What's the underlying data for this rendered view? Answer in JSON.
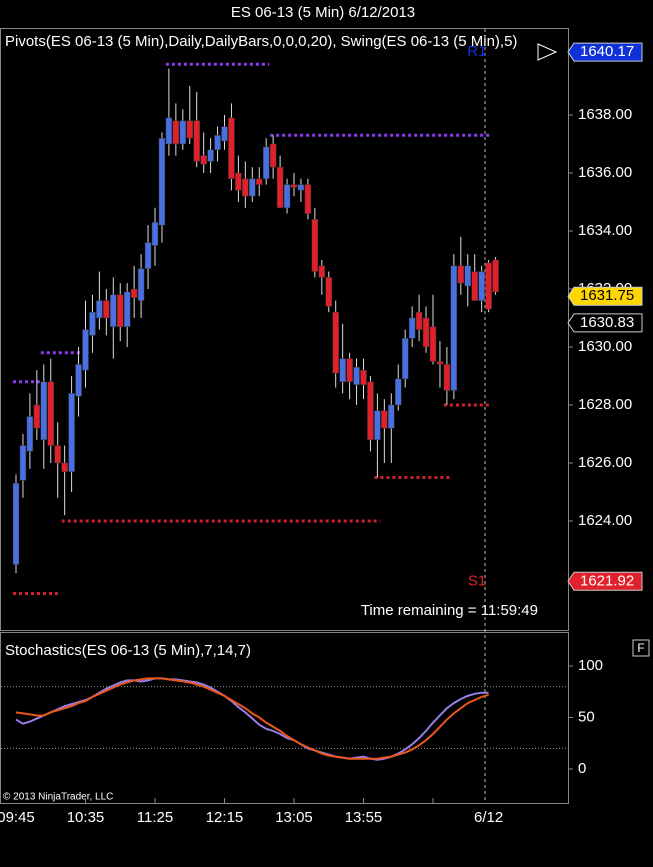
{
  "chart_data": {
    "type": "candlestick",
    "title": "ES 06-13 (5 Min)  6/12/2013",
    "indicator_label": "Pivots(ES 06-13 (5 Min),Daily,DailyBars,0,0,0,20), Swing(ES 06-13 (5 Min),5)",
    "time_remaining": "Time remaining = 11:59:49",
    "copyright": "© 2013 NinjaTrader, LLC",
    "categories": [
      "09:45",
      null,
      null,
      null,
      null,
      null,
      null,
      null,
      null,
      null,
      "10:35",
      null,
      null,
      null,
      null,
      null,
      null,
      null,
      null,
      null,
      "11:25",
      null,
      null,
      null,
      null,
      null,
      null,
      null,
      null,
      null,
      "12:15",
      null,
      null,
      null,
      null,
      null,
      null,
      null,
      null,
      null,
      "13:05",
      null,
      null,
      null,
      null,
      null,
      null,
      null,
      null,
      null,
      "13:55",
      null,
      null,
      null,
      null,
      null,
      null,
      null,
      null,
      null,
      null,
      null,
      null,
      null,
      null,
      null,
      null,
      null,
      "6/12",
      null
    ],
    "open": [
      1622.5,
      1625.4,
      1626.4,
      1628.0,
      1626.8,
      1628.8,
      1626.6,
      1626.0,
      1625.7,
      1628.3,
      1629.2,
      1630.4,
      1631.0,
      1631.6,
      1630.7,
      1631.8,
      1630.7,
      1632.0,
      1631.6,
      1632.7,
      1633.5,
      1634.2,
      1637.0,
      1637.8,
      1637.0,
      1637.8,
      1637.8,
      1636.6,
      1636.4,
      1636.8,
      1637.1,
      1637.9,
      1636.0,
      1635.8,
      1635.2,
      1635.8,
      1635.8,
      1637.0,
      1636.2,
      1634.8,
      1635.6,
      1635.4,
      1635.6,
      1634.4,
      1632.8,
      1632.4,
      1631.2,
      1628.8,
      1629.6,
      1628.7,
      1629.2,
      1628.8,
      1626.8,
      1627.8,
      1627.2,
      1628.0,
      1628.9,
      1630.3,
      1631.2,
      1631.0,
      1630.7,
      1629.5,
      1629.4,
      1628.5,
      1632.8,
      1632.1,
      1632.6,
      1631.6,
      1632.9,
      1633.0
    ],
    "high": [
      1625.6,
      1627.0,
      1628.4,
      1629.2,
      1629.4,
      1629.6,
      1627.4,
      1626.6,
      1629.0,
      1630.0,
      1631.6,
      1631.8,
      1632.6,
      1632.0,
      1632.4,
      1632.2,
      1632.2,
      1632.8,
      1633.2,
      1634.2,
      1634.8,
      1637.4,
      1639.6,
      1638.4,
      1638.2,
      1639.0,
      1638.8,
      1637.4,
      1637.2,
      1637.6,
      1638.0,
      1638.4,
      1636.6,
      1636.4,
      1636.2,
      1636.2,
      1637.2,
      1637.3,
      1636.6,
      1635.8,
      1636.0,
      1635.8,
      1635.8,
      1634.8,
      1633.0,
      1632.6,
      1631.6,
      1630.8,
      1629.8,
      1629.6,
      1629.6,
      1629.0,
      1628.4,
      1628.2,
      1628.4,
      1629.4,
      1630.6,
      1631.4,
      1631.8,
      1631.4,
      1631.8,
      1630.2,
      1630.0,
      1633.2,
      1633.8,
      1633.2,
      1633.2,
      1632.8,
      1633.0,
      1633.1
    ],
    "low": [
      1622.2,
      1624.8,
      1625.8,
      1626.8,
      1625.8,
      1626.0,
      1624.8,
      1624.2,
      1625.0,
      1627.6,
      1628.6,
      1629.8,
      1630.6,
      1630.4,
      1629.6,
      1630.2,
      1630.0,
      1631.0,
      1631.0,
      1632.0,
      1632.8,
      1633.6,
      1636.6,
      1636.6,
      1636.8,
      1637.0,
      1636.2,
      1636.0,
      1636.0,
      1636.4,
      1636.8,
      1635.4,
      1635.0,
      1634.8,
      1635.0,
      1635.2,
      1635.6,
      1635.8,
      1634.8,
      1634.6,
      1635.2,
      1635.0,
      1634.4,
      1632.4,
      1631.8,
      1631.2,
      1628.6,
      1628.4,
      1628.2,
      1628.0,
      1628.2,
      1626.4,
      1625.5,
      1626.0,
      1626.0,
      1627.8,
      1628.6,
      1630.0,
      1630.2,
      1629.8,
      1629.4,
      1628.6,
      1628.0,
      1628.2,
      1631.8,
      1631.4,
      1631.6,
      1631.2,
      1631.2,
      1631.8
    ],
    "close": [
      1625.3,
      1626.6,
      1627.6,
      1627.2,
      1628.8,
      1626.6,
      1626.0,
      1625.7,
      1628.4,
      1629.4,
      1630.6,
      1631.2,
      1631.6,
      1631.0,
      1631.8,
      1630.7,
      1631.9,
      1631.7,
      1632.7,
      1633.6,
      1634.3,
      1637.2,
      1637.9,
      1637.0,
      1637.8,
      1637.2,
      1636.4,
      1636.3,
      1636.8,
      1637.3,
      1637.6,
      1635.8,
      1635.4,
      1635.2,
      1635.8,
      1635.6,
      1636.9,
      1636.2,
      1634.8,
      1635.6,
      1635.5,
      1635.6,
      1634.6,
      1632.6,
      1632.4,
      1631.4,
      1629.1,
      1629.6,
      1628.8,
      1629.3,
      1628.7,
      1626.8,
      1627.8,
      1627.2,
      1628.0,
      1628.9,
      1630.3,
      1631.0,
      1630.6,
      1630.0,
      1629.5,
      1629.4,
      1628.5,
      1632.8,
      1632.2,
      1632.8,
      1631.6,
      1632.6,
      1631.3,
      1631.9
    ],
    "up_color": "#4a6fe0",
    "down_color": "#e0202a",
    "ylim": [
      1620.24,
      1641.0
    ],
    "yticks": [
      {
        "value": 1624,
        "label": "1624.00"
      },
      {
        "value": 1626,
        "label": "1626.00"
      },
      {
        "value": 1628,
        "label": "1628.00"
      },
      {
        "value": 1630,
        "label": "1630.00"
      },
      {
        "value": 1632,
        "label": "1632.00"
      },
      {
        "value": 1634,
        "label": "1634.00"
      },
      {
        "value": 1636,
        "label": "1636.00"
      },
      {
        "value": 1638,
        "label": "1638.00"
      }
    ],
    "pivots": [
      {
        "name": "R1",
        "value": 1640.17,
        "color": "#1030d8"
      },
      {
        "name": "S1",
        "value": 1621.92,
        "color": "#e0202a"
      }
    ],
    "price_markers": [
      {
        "value": 1631.75,
        "color": "#ffd700"
      },
      {
        "value": 1630.83,
        "color": "#000000"
      }
    ],
    "swing_levels": [
      {
        "value": 1639.75,
        "from": 22,
        "to": 36,
        "color": "#8a3cf0"
      },
      {
        "value": 1637.3,
        "from": 37,
        "to": 68,
        "color": "#8a3cf0"
      },
      {
        "value": 1629.8,
        "from": 4,
        "to": 9,
        "color": "#8a3cf0"
      },
      {
        "value": 1628.8,
        "from": 0,
        "to": 3,
        "color": "#8a3cf0"
      },
      {
        "value": 1621.5,
        "from": 0,
        "to": 6,
        "color": "#d02030"
      },
      {
        "value": 1624.0,
        "from": 7,
        "to": 52,
        "color": "#d02030"
      },
      {
        "value": 1625.5,
        "from": 52,
        "to": 62,
        "color": "#d02030"
      },
      {
        "value": 1628.0,
        "from": 62,
        "to": 68,
        "color": "#d02030"
      }
    ],
    "stochastics": {
      "label": "Stochastics(ES 06-13 (5 Min),7,14,7)",
      "ylim": [
        -33,
        133
      ],
      "yticks": [
        0,
        50,
        100
      ],
      "levels": [
        20,
        80
      ],
      "series": [
        {
          "name": "D",
          "color": "#9a7ee8",
          "values": [
            48,
            44,
            46,
            49,
            52,
            55,
            58,
            61,
            63,
            65,
            67,
            70,
            74,
            78,
            81,
            84,
            86,
            86,
            85,
            86,
            88,
            88,
            87,
            87,
            86,
            85,
            84,
            82,
            79,
            75,
            71,
            66,
            60,
            55,
            49,
            43,
            39,
            37,
            34,
            30,
            28,
            24,
            20,
            18,
            16,
            14,
            12,
            11,
            10,
            11,
            12,
            10,
            9,
            10,
            12,
            15,
            19,
            24,
            30,
            37,
            45,
            52,
            59,
            64,
            68,
            71,
            73,
            74,
            74,
            null
          ]
        },
        {
          "name": "K",
          "color": "#e8581c",
          "values": [
            55,
            54,
            53,
            52,
            52,
            55,
            57,
            59,
            61,
            64,
            66,
            70,
            73,
            76,
            79,
            82,
            84,
            86,
            87,
            88,
            88,
            88,
            87,
            86,
            85,
            84,
            82,
            80,
            77,
            74,
            71,
            67,
            63,
            59,
            54,
            50,
            45,
            41,
            37,
            32,
            28,
            24,
            21,
            18,
            15,
            13,
            12,
            11,
            10,
            10,
            10,
            10,
            10,
            11,
            12,
            14,
            16,
            19,
            23,
            28,
            34,
            41,
            48,
            54,
            59,
            64,
            67,
            70,
            72,
            null
          ]
        }
      ]
    },
    "panel_button": "F"
  }
}
